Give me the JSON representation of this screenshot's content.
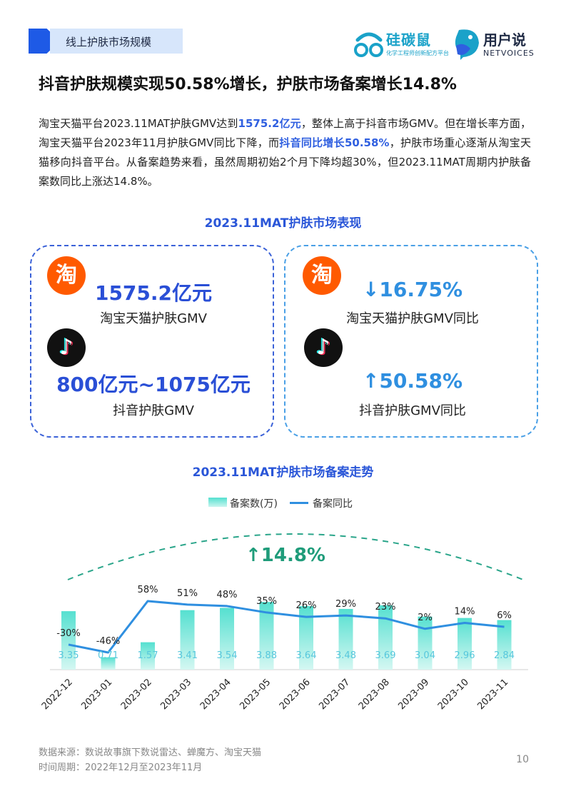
{
  "header": {
    "section_label": "线上护肤市场规模",
    "logo_a_name": "硅碳鼠",
    "logo_a_sub": "化学工程师创新配方平台",
    "logo_b_name": "用户说",
    "logo_b_sub": "NETVOICES"
  },
  "headline": "抖音护肤规模实现50.58%增长，护肤市场备案增长14.8%",
  "body": {
    "p1": "淘宝天猫平台2023.11MAT护肤GMV达到",
    "h1": "1575.2亿元",
    "p2": "，整体上高于抖音市场GMV。但在增长率方面，淘宝天猫平台2023年11月护肤GMV同比下降，而",
    "h2": "抖音同比增长50.58%",
    "p3": "，护肤市场重心逐渐从淘宝天猫移向抖音平台。从备案趋势来看，虽然周期初始2个月下降均超30%，但2023.11MAT周期内护肤备案数同比上涨达14.8%。"
  },
  "section1_title": "2023.11MAT护肤市场表现",
  "cards": {
    "left": {
      "tb_value": "1575.2亿元",
      "tb_label": "淘宝天猫护肤GMV",
      "dy_value": "800亿元~1075亿元",
      "dy_label": "抖音护肤GMV"
    },
    "right": {
      "tb_value": "↓16.75%",
      "tb_label": "淘宝天猫护肤GMV同比",
      "dy_value": "↑50.58%",
      "dy_label": "抖音护肤GMV同比"
    },
    "icons": {
      "taobao": "淘",
      "douyin": "♪"
    }
  },
  "section2_title": "2023.11MAT护肤市场备案走势",
  "chart_data": {
    "type": "bar",
    "title": "2023.11MAT护肤市场备案走势",
    "categories": [
      "2022-12",
      "2023-01",
      "2023-02",
      "2023-03",
      "2023-04",
      "2023-05",
      "2023-06",
      "2023-07",
      "2023-08",
      "2023-09",
      "2023-10",
      "2023-11"
    ],
    "series": [
      {
        "name": "备案数(万)",
        "type": "bar",
        "values": [
          3.35,
          0.71,
          1.57,
          3.41,
          3.54,
          3.88,
          3.64,
          3.48,
          3.69,
          3.04,
          2.96,
          2.84
        ],
        "labels": [
          "3.35",
          "0.71",
          "1.57",
          "3.41",
          "3.54",
          "3.88",
          "3.64",
          "3.48",
          "3.69",
          "3.04",
          "2.96",
          "2.84"
        ]
      },
      {
        "name": "备案同比",
        "type": "line",
        "values": [
          -30,
          -46,
          58,
          51,
          48,
          35,
          26,
          29,
          23,
          2,
          14,
          6
        ],
        "labels": [
          "-30%",
          "-46%",
          "58%",
          "51%",
          "48%",
          "35%",
          "26%",
          "29%",
          "23%",
          "2%",
          "14%",
          "6%"
        ]
      }
    ],
    "annotation": "↑14.8%",
    "legend_position": "top-center",
    "grid": false,
    "colors": {
      "bar": "#55e0d0",
      "line": "#2f8fe0",
      "annotation": "#1f9c7a"
    }
  },
  "footer": {
    "source": "数据来源：数说故事旗下数说雷达、蝉魔方、淘宝天猫",
    "period": "时间周期：2022年12月至2023年11月"
  },
  "page_number": "10"
}
